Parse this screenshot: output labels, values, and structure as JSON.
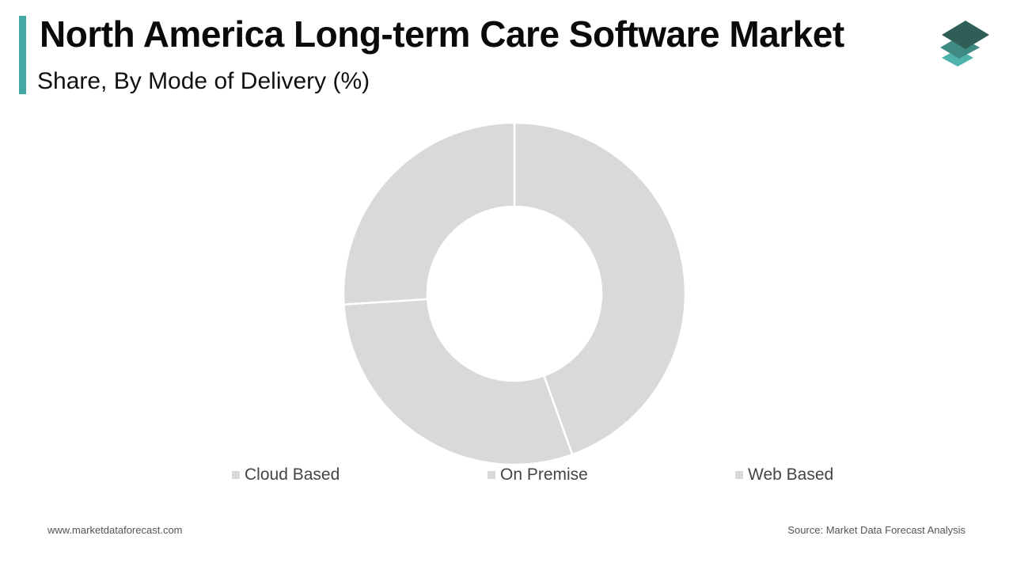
{
  "header": {
    "title": "North America Long-term Care Software Market",
    "subtitle": "Share, By Mode of Delivery (%)",
    "accent_color": "#44a9a4"
  },
  "logo": {
    "icon": "stacked-layers-logo-icon",
    "colors": [
      "#2e5e56",
      "#3f8a82",
      "#4fb3ab"
    ]
  },
  "chart_data": {
    "type": "pie",
    "donut": true,
    "categories": [
      "Cloud Based",
      "On Premise",
      "Web Based"
    ],
    "values": [
      44.5,
      29.5,
      26.0
    ],
    "colors": [
      "#d9d9d9",
      "#d9d9d9",
      "#d9d9d9"
    ],
    "separator_color": "#ffffff",
    "legend_position": "bottom"
  },
  "footer": {
    "website": "www.marketdataforecast.com",
    "source": "Source: Market Data Forecast Analysis"
  }
}
